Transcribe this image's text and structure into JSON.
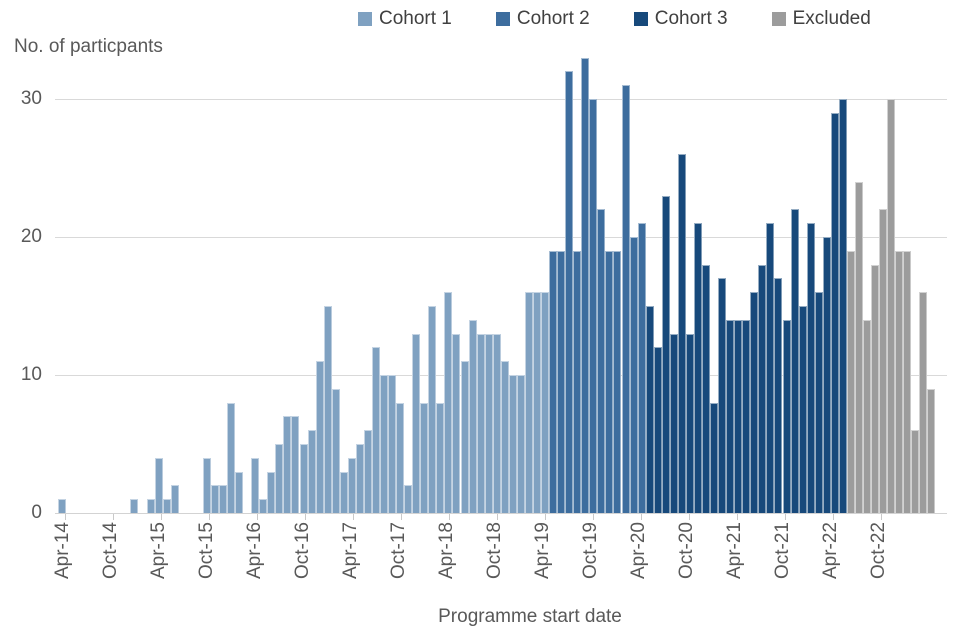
{
  "chart_data": {
    "type": "bar",
    "title": "",
    "ylabel": "No. of particpants",
    "xlabel": "Programme start date",
    "y_ticks": [
      0,
      10,
      20,
      30
    ],
    "ylim": [
      0,
      33
    ],
    "grid": "horizontal",
    "legend_position": "top",
    "x_tick_labels": [
      "Apr-14",
      "Oct-14",
      "Apr-15",
      "Oct-15",
      "Apr-16",
      "Oct-16",
      "Apr-17",
      "Oct-17",
      "Apr-18",
      "Oct-18",
      "Apr-19",
      "Oct-19",
      "Apr-20",
      "Oct-20",
      "Apr-21",
      "Oct-21",
      "Apr-22",
      "Oct-22"
    ],
    "x_unit": "month",
    "series": [
      {
        "name": "Cohort 1",
        "color": "#7FA1C1",
        "start_month": "Apr-2014",
        "start_index": 0,
        "values": [
          1,
          0,
          0,
          0,
          0,
          0,
          0,
          0,
          0,
          1,
          0,
          1,
          4,
          1,
          2,
          0,
          0,
          0,
          4,
          2,
          2,
          8,
          3,
          0,
          4,
          1,
          3,
          5,
          7,
          7,
          5,
          6,
          11,
          15,
          9,
          3,
          4,
          5,
          6,
          12,
          10,
          10,
          8,
          2,
          13,
          8,
          15,
          8,
          16,
          13,
          11,
          14,
          13,
          13,
          13,
          11,
          10,
          10,
          16,
          16,
          16
        ]
      },
      {
        "name": "Cohort 2",
        "color": "#3D6D9E",
        "start_month": "May-2019",
        "start_index": 61,
        "values": [
          19,
          19,
          32,
          19,
          33,
          30,
          22,
          19,
          19,
          31,
          20,
          21
        ]
      },
      {
        "name": "Cohort 3",
        "color": "#17497B",
        "start_month": "May-2020",
        "start_index": 73,
        "values": [
          15,
          12,
          23,
          13,
          26,
          13,
          21,
          18,
          8,
          17,
          14,
          14,
          14,
          16,
          18,
          21,
          17,
          14,
          22,
          15,
          21,
          16,
          20,
          29,
          30
        ]
      },
      {
        "name": "Excluded",
        "color": "#9C9C9C",
        "start_month": "Jun-2022",
        "start_index": 98,
        "values": [
          19,
          24,
          14,
          18,
          22,
          30,
          19,
          19,
          6,
          16,
          9
        ]
      }
    ]
  },
  "legend": {
    "item1": "Cohort 1",
    "item2": "Cohort 2",
    "item3": "Cohort 3",
    "item4": "Excluded"
  },
  "titles": {
    "y_axis": "No. of particpants",
    "x_axis": "Programme start date"
  }
}
